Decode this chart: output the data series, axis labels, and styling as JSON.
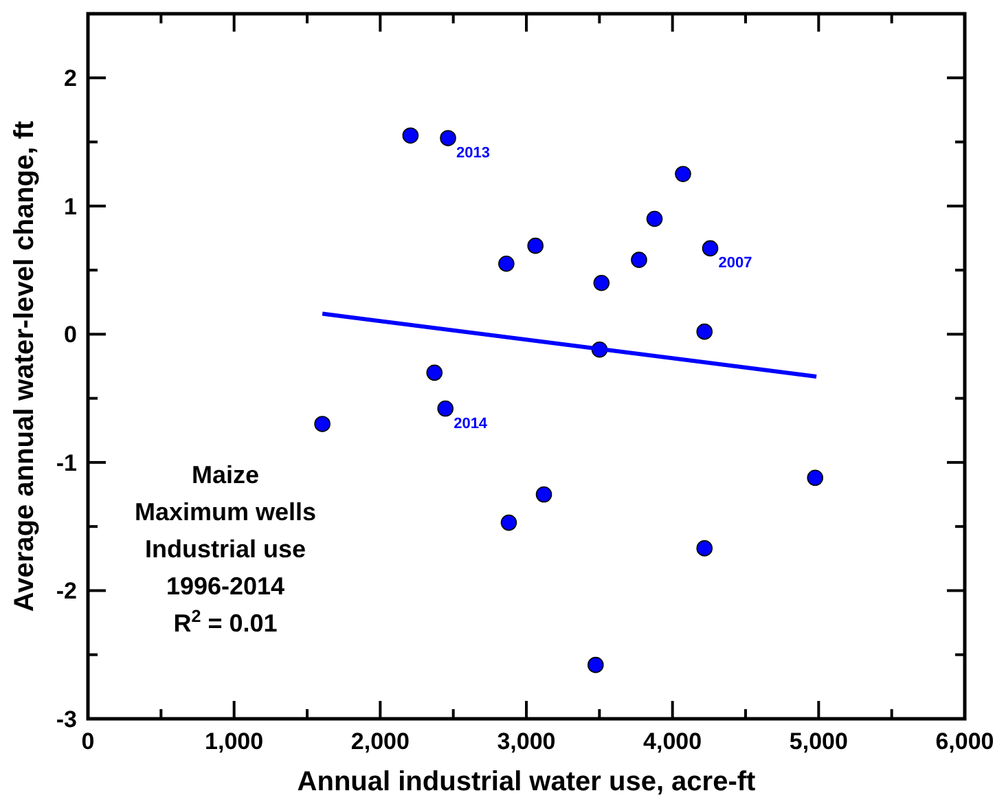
{
  "chart_data": {
    "type": "scatter",
    "xlabel": "Annual industrial water use, acre-ft",
    "ylabel": "Average annual water-level change, ft",
    "xlim": [
      0,
      6000
    ],
    "ylim": [
      -3,
      2.5
    ],
    "xticks": [
      0,
      {
        "value": 500,
        "label": null
      },
      {
        "value": 1000,
        "label": "1,000"
      },
      {
        "value": 1500,
        "label": null
      },
      {
        "value": 2000,
        "label": "2,000"
      },
      {
        "value": 2500,
        "label": null
      },
      {
        "value": 3000,
        "label": "3,000"
      },
      {
        "value": 3500,
        "label": null
      },
      {
        "value": 4000,
        "label": "4,000"
      },
      {
        "value": 4500,
        "label": null
      },
      {
        "value": 5000,
        "label": "5,000"
      },
      {
        "value": 5500,
        "label": null
      },
      {
        "value": 6000,
        "label": "6,000"
      }
    ],
    "yticks": [
      -3,
      {
        "value": -2.5,
        "label": null
      },
      -2,
      {
        "value": -1.5,
        "label": null
      },
      -1,
      {
        "value": -0.5,
        "label": null
      },
      0,
      {
        "value": 0.5,
        "label": null
      },
      1,
      {
        "value": 1.5,
        "label": null
      },
      2
    ],
    "grid": false,
    "marker": "circle",
    "series": [
      {
        "color": "#0000ff",
        "x": [
          2207,
          2464,
          4072,
          3877,
          3062,
          2863,
          3771,
          4258,
          3514,
          4219,
          3501,
          2371,
          2446,
          1604,
          4976,
          3120,
          2880,
          4219,
          3474
        ],
        "values": [
          1.55,
          1.53,
          1.25,
          0.9,
          0.69,
          0.55,
          0.58,
          0.67,
          0.4,
          0.02,
          -0.12,
          -0.3,
          -0.58,
          -0.7,
          -1.12,
          -1.25,
          -1.47,
          -1.67,
          -2.58
        ]
      },
      {
        "type": "line",
        "color": "#0000ff",
        "marker": "none",
        "x": [
          1604,
          4985
        ],
        "values": [
          0.16,
          -0.33
        ]
      }
    ],
    "annotations": [
      {
        "text": "2013",
        "x": 2464,
        "y": 1.53
      },
      {
        "text": "2007",
        "x": 4258,
        "y": 0.67
      },
      {
        "text": "2014",
        "x": 2446,
        "y": -0.58
      },
      "Maize\nMaximum wells\nIndustrial use\n1996-2014\nR$^{2}$ = 0.01"
    ]
  }
}
